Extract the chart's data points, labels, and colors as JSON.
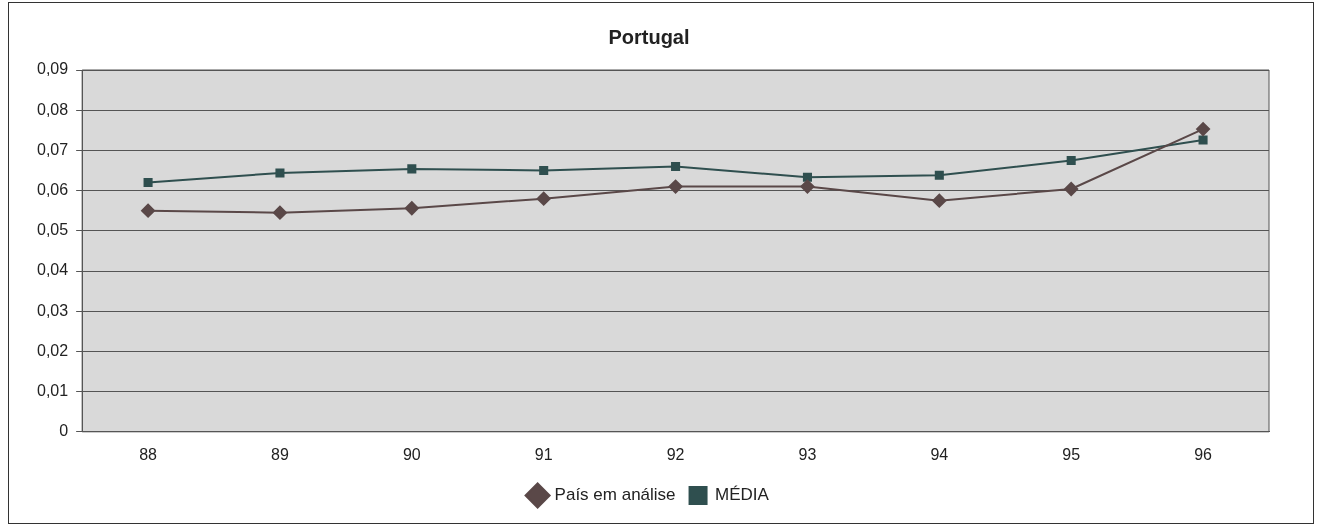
{
  "chart_data": {
    "type": "line",
    "title": "Portugal",
    "categories": [
      "88",
      "89",
      "90",
      "91",
      "92",
      "93",
      "94",
      "95",
      "96"
    ],
    "series": [
      {
        "name": "País em análise",
        "color": "#5a4848",
        "marker": "diamond",
        "values": [
          0.055,
          0.0545,
          0.0556,
          0.058,
          0.061,
          0.061,
          0.0575,
          0.0604,
          0.0753
        ]
      },
      {
        "name": "MÉDIA",
        "color": "#2f4f4f",
        "marker": "square",
        "values": [
          0.062,
          0.0644,
          0.0654,
          0.065,
          0.066,
          0.0633,
          0.0638,
          0.0675,
          0.0726
        ]
      }
    ],
    "ylim": [
      0,
      0.09
    ],
    "yticks": [
      0,
      {
        "value": 0.01,
        "label": "0,01"
      },
      {
        "value": 0.02,
        "label": "0,02"
      },
      {
        "value": 0.03,
        "label": "0,03"
      },
      {
        "value": 0.04,
        "label": "0,04"
      },
      {
        "value": 0.05,
        "label": "0,05"
      },
      {
        "value": 0.06,
        "label": "0,06"
      },
      {
        "value": 0.07,
        "label": "0,07"
      },
      {
        "value": 0.08,
        "label": "0,08"
      },
      {
        "value": 0.09,
        "label": "0,09"
      }
    ],
    "grid": "y",
    "legend": "bottom",
    "line_style": "solid"
  }
}
